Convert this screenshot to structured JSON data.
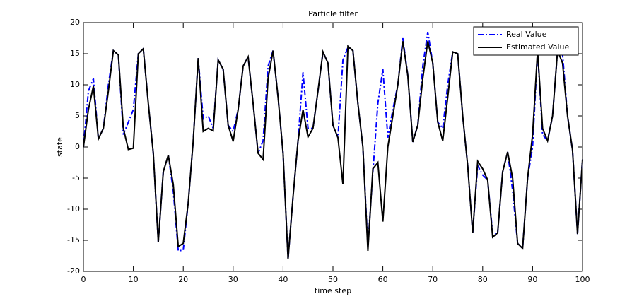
{
  "chart_data": {
    "type": "line",
    "title": "Particle filter",
    "xlabel": "time step",
    "ylabel": "state",
    "x": [
      0,
      1,
      2,
      3,
      4,
      5,
      6,
      7,
      8,
      9,
      10,
      11,
      12,
      13,
      14,
      15,
      16,
      17,
      18,
      19,
      20,
      21,
      22,
      23,
      24,
      25,
      26,
      27,
      28,
      29,
      30,
      31,
      32,
      33,
      34,
      35,
      36,
      37,
      38,
      39,
      40,
      41,
      42,
      43,
      44,
      45,
      46,
      47,
      48,
      49,
      50,
      51,
      52,
      53,
      54,
      55,
      56,
      57,
      58,
      59,
      60,
      61,
      62,
      63,
      64,
      65,
      66,
      67,
      68,
      69,
      70,
      71,
      72,
      73,
      74,
      75,
      76,
      77,
      78,
      79,
      80,
      81,
      82,
      83,
      84,
      85,
      86,
      87,
      88,
      89,
      90,
      91,
      92,
      93,
      94,
      95,
      96,
      97,
      98,
      99,
      100
    ],
    "series": [
      {
        "name": "Real Value",
        "color": "#0000ff",
        "linestyle": "-.",
        "values": [
          0,
          9,
          11,
          1.3,
          3,
          10,
          15.5,
          14.8,
          2,
          4,
          6,
          15,
          15.8,
          7,
          -1,
          -15.3,
          -4,
          -1.3,
          -7,
          -16.7,
          -16.6,
          -9,
          1,
          14.3,
          4.5,
          5,
          3,
          14,
          12.5,
          3.5,
          2.5,
          6,
          13,
          14.5,
          7,
          -1,
          1,
          13,
          15.5,
          8,
          -1,
          -18,
          -8,
          1,
          12,
          3,
          3,
          9,
          15.3,
          13.5,
          3.5,
          1.5,
          14,
          16,
          15.5,
          7,
          0,
          -16,
          -4,
          7,
          12.5,
          1.5,
          6,
          10,
          17.5,
          11.5,
          0.8,
          3.5,
          13,
          18.5,
          13.5,
          4,
          3,
          10,
          15.3,
          15,
          5,
          -3,
          -13.8,
          -3,
          -4.5,
          -5.3,
          -14,
          -13.8,
          -4,
          -0.8,
          -7,
          -15.5,
          -16.3,
          -5,
          0,
          15.5,
          2,
          1,
          5,
          15.5,
          15,
          5,
          -0.5,
          -14,
          -2
        ]
      },
      {
        "name": "Estimated Value",
        "color": "#000000",
        "linestyle": "-",
        "values": [
          0,
          6,
          9.8,
          1.3,
          3,
          9,
          15.5,
          14.8,
          3,
          -0.4,
          -0.2,
          15,
          15.8,
          7,
          -1,
          -15.3,
          -4,
          -1.3,
          -6,
          -16,
          -15.5,
          -9,
          1,
          14.3,
          2.5,
          3,
          2.6,
          14,
          12.5,
          3.5,
          0.9,
          6,
          13,
          14.5,
          7,
          -1,
          -2,
          11,
          15.5,
          8,
          -1,
          -18,
          -8,
          1,
          6,
          1.6,
          3,
          9,
          15.3,
          13.5,
          3.5,
          1.5,
          -6,
          16.2,
          15.5,
          7,
          0,
          -16.7,
          -3.5,
          -2.5,
          -12,
          0,
          5,
          10,
          17,
          11.5,
          0.8,
          3.5,
          11,
          17,
          13.5,
          4,
          1,
          8,
          15.3,
          15,
          5,
          -3,
          -13.8,
          -2.3,
          -3.5,
          -5.3,
          -14.5,
          -13.8,
          -4,
          -0.8,
          -5,
          -15.5,
          -16.3,
          -5,
          2,
          15.5,
          3,
          1,
          5,
          15.5,
          13.5,
          5,
          -0.5,
          -14,
          -2
        ]
      }
    ],
    "xlim": [
      0,
      100
    ],
    "xticks": [
      0,
      10,
      20,
      30,
      40,
      50,
      60,
      70,
      80,
      90,
      100
    ],
    "ylim": [
      -20,
      20
    ],
    "yticks": [
      -20,
      -15,
      -10,
      -5,
      0,
      5,
      10,
      15,
      20
    ],
    "legend": "northeast"
  }
}
